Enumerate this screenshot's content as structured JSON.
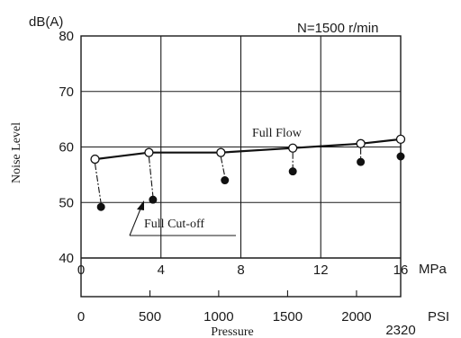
{
  "chart_data": {
    "type": "line",
    "title": "N=1500 r/min",
    "y_unit": "dB(A)",
    "ylabel": "Noise Level",
    "xlabel": "Pressure",
    "x_unit_primary": "MPa",
    "x_unit_secondary": "PSI",
    "xlim": [
      0,
      16
    ],
    "ylim": [
      40,
      80
    ],
    "y_ticks": [
      "40",
      "50",
      "60",
      "70",
      "80"
    ],
    "x_ticks_mpa": [
      {
        "value": 0,
        "label": "0"
      },
      {
        "value": 4,
        "label": "4"
      },
      {
        "value": 8,
        "label": "8"
      },
      {
        "value": 12,
        "label": "12"
      },
      {
        "value": 16,
        "label": "16"
      }
    ],
    "x_ticks_psi": [
      {
        "mpa": 0,
        "label": "0"
      },
      {
        "mpa": 3.45,
        "label": "500"
      },
      {
        "mpa": 6.89,
        "label": "1000"
      },
      {
        "mpa": 10.34,
        "label": "1500"
      },
      {
        "mpa": 13.79,
        "label": "2000"
      },
      {
        "mpa": 16,
        "label": "2320"
      }
    ],
    "grid": true,
    "series": [
      {
        "name": "Full Flow",
        "marker": "open-circle",
        "x": [
          0.7,
          3.4,
          7.0,
          10.6,
          14.0,
          16.0
        ],
        "y": [
          57.8,
          59.0,
          59.0,
          59.8,
          60.6,
          61.4
        ]
      },
      {
        "name": "Full Cut-off",
        "marker": "filled-circle",
        "x": [
          1.0,
          3.6,
          7.2,
          10.6,
          14.0,
          16.0
        ],
        "y": [
          49.2,
          50.5,
          54.0,
          55.6,
          57.3,
          58.3
        ]
      }
    ],
    "annotations": [
      "Full Flow",
      "Full Cut-off"
    ]
  }
}
